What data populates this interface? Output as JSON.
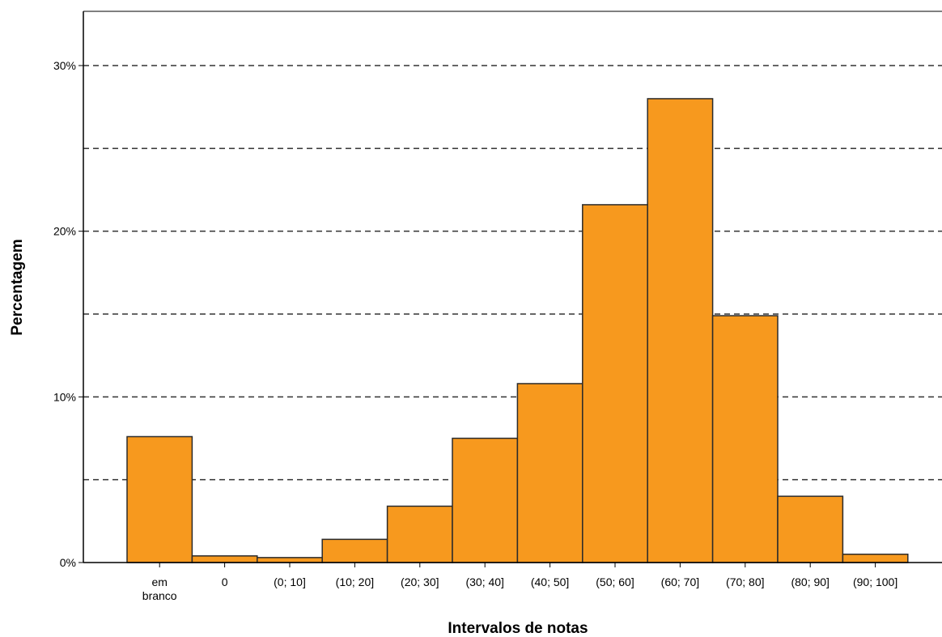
{
  "chart_data": {
    "type": "bar",
    "xlabel": "Intervalos de notas",
    "ylabel": "Percentagem",
    "categories": [
      [
        "em",
        "branco"
      ],
      [
        "0"
      ],
      [
        "(0; 10]"
      ],
      [
        "(10; 20]"
      ],
      [
        "(20; 30]"
      ],
      [
        "(30; 40]"
      ],
      [
        "(40; 50]"
      ],
      [
        "(50; 60]"
      ],
      [
        "(60; 70]"
      ],
      [
        "(70; 80]"
      ],
      [
        "(80; 90]"
      ],
      [
        "(90; 100]"
      ]
    ],
    "values": [
      7.6,
      0.4,
      0.3,
      1.4,
      3.4,
      7.5,
      10.8,
      21.6,
      28.0,
      14.9,
      4.0,
      0.5
    ],
    "ylim": [
      0,
      33
    ],
    "yticks": [
      0,
      10,
      20,
      30
    ],
    "ytick_labels": [
      "0%",
      "10%",
      "20%",
      "30%"
    ],
    "gridlines": [
      5,
      10,
      15,
      20,
      25,
      30
    ],
    "grid": true,
    "legend": "none",
    "bar_color": "#f7991e",
    "bar_edge_color": "#2b2b2b"
  }
}
